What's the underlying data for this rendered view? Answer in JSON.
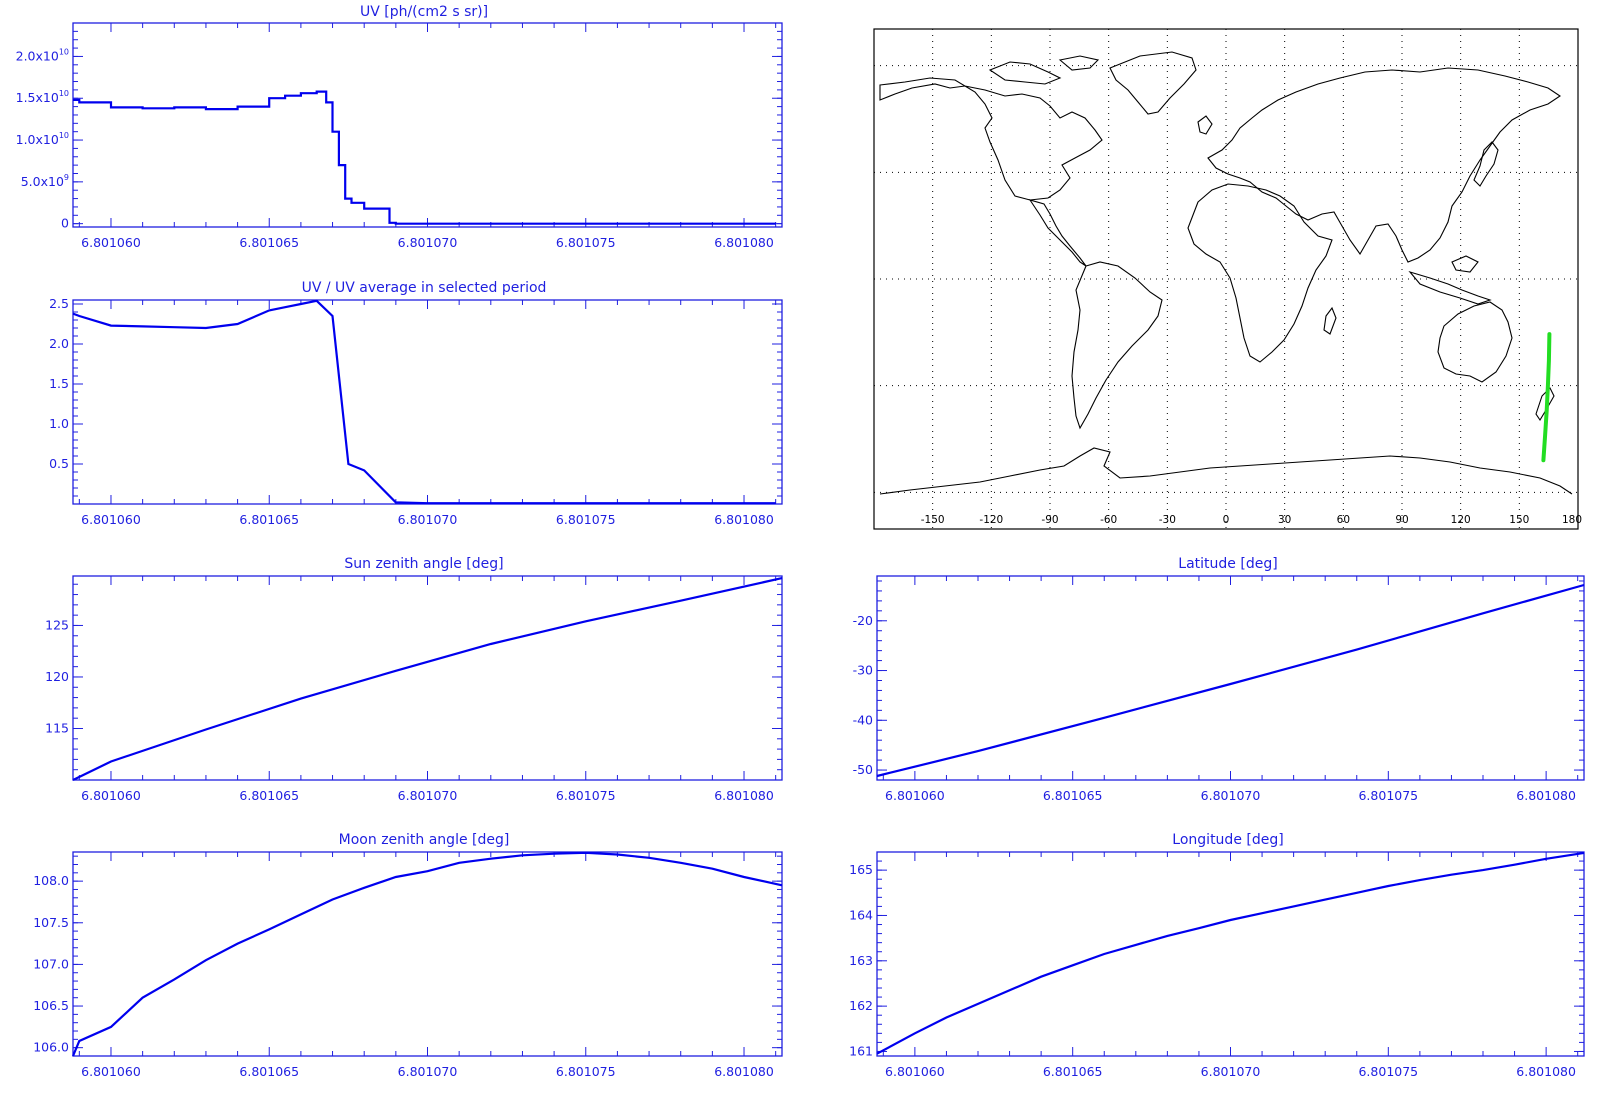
{
  "colors": {
    "axis": "#1f1fe0",
    "line": "#0000ee",
    "map_line": "#000000",
    "track": "#22dd22",
    "grid": "#000000"
  },
  "map": {
    "lon_ticks": [
      "-150",
      "-120",
      "-90",
      "-60",
      "-30",
      "0",
      "30",
      "60",
      "90",
      "120",
      "150",
      "180"
    ],
    "lat_grid": [
      -60,
      -30,
      0,
      30,
      60
    ],
    "lon_grid": [
      -150,
      -120,
      -90,
      -60,
      -30,
      0,
      30,
      60,
      90,
      120,
      150
    ],
    "track": [
      [
        162.3,
        -51.0
      ],
      [
        163.2,
        -44.0
      ],
      [
        164.0,
        -37.0
      ],
      [
        164.6,
        -30.0
      ],
      [
        165.1,
        -23.0
      ],
      [
        165.4,
        -15.5
      ]
    ]
  },
  "chart_data": [
    {
      "type": "line",
      "title": "UV [ph/(cm2 s sr)]",
      "ylim": [
        -400000000,
        24000000000
      ],
      "xlim": [
        6.8010588,
        6.8010812
      ],
      "x_ticks": [
        "6.801060",
        "6.801065",
        "6.801070",
        "6.801075",
        "6.801080"
      ],
      "y_ticks": [
        {
          "value": 0,
          "label": "0"
        },
        {
          "value": 5000000000,
          "label": "5.0x10",
          "exp": "9"
        },
        {
          "value": 10000000000,
          "label": "1.0x10",
          "exp": "10"
        },
        {
          "value": 15000000000,
          "label": "1.5x10",
          "exp": "10"
        },
        {
          "value": 20000000000,
          "label": "2.0x10",
          "exp": "10"
        }
      ],
      "step": true,
      "x": [
        6.8010588,
        6.801059,
        6.80106,
        6.801061,
        6.801062,
        6.801063,
        6.801064,
        6.801065,
        6.8010655,
        6.801066,
        6.8010665,
        6.8010668,
        6.801067,
        6.8010672,
        6.8010674,
        6.8010676,
        6.801068,
        6.8010688,
        6.801069,
        6.80107,
        6.801075,
        6.801081
      ],
      "y": [
        14800000000,
        14500000000,
        13900000000,
        13800000000,
        13900000000,
        13700000000,
        14000000000,
        15000000000,
        15300000000,
        15600000000,
        15800000000,
        14500000000,
        11000000000,
        7000000000,
        3000000000,
        2500000000,
        1800000000,
        100000000,
        0,
        0,
        0,
        0
      ]
    },
    {
      "type": "line",
      "title": "UV / UV average in selected period",
      "ylim": [
        0.0,
        2.55
      ],
      "xlim": [
        6.8010588,
        6.8010812
      ],
      "x_ticks": [
        "6.801060",
        "6.801065",
        "6.801070",
        "6.801075",
        "6.801080"
      ],
      "y_ticks": [
        {
          "value": 0.5,
          "label": "0.5"
        },
        {
          "value": 1.0,
          "label": "1.0"
        },
        {
          "value": 1.5,
          "label": "1.5"
        },
        {
          "value": 2.0,
          "label": "2.0"
        },
        {
          "value": 2.5,
          "label": "2.5"
        }
      ],
      "x": [
        6.8010588,
        6.801059,
        6.80106,
        6.801061,
        6.801062,
        6.801063,
        6.801064,
        6.801065,
        6.8010655,
        6.801066,
        6.8010665,
        6.801067,
        6.8010675,
        6.801068,
        6.801069,
        6.80107,
        6.801075,
        6.801081
      ],
      "y": [
        2.38,
        2.35,
        2.23,
        2.22,
        2.21,
        2.2,
        2.25,
        2.42,
        2.46,
        2.5,
        2.54,
        2.35,
        0.5,
        0.42,
        0.02,
        0.01,
        0.01,
        0.01
      ]
    },
    {
      "type": "line",
      "title": "Sun zenith angle [deg]",
      "ylim": [
        110,
        129.8
      ],
      "xlim": [
        6.8010588,
        6.8010812
      ],
      "x_ticks": [
        "6.801060",
        "6.801065",
        "6.801070",
        "6.801075",
        "6.801080"
      ],
      "y_ticks": [
        {
          "value": 115,
          "label": "115"
        },
        {
          "value": 120,
          "label": "120"
        },
        {
          "value": 125,
          "label": "125"
        }
      ],
      "x": [
        6.8010588,
        6.80106,
        6.801063,
        6.801066,
        6.801069,
        6.801072,
        6.801075,
        6.801078,
        6.8010812
      ],
      "y": [
        110.0,
        111.8,
        114.9,
        117.9,
        120.6,
        123.2,
        125.4,
        127.4,
        129.6
      ]
    },
    {
      "type": "line",
      "title": "Latitude [deg]",
      "ylim": [
        -52,
        -11
      ],
      "xlim": [
        6.8010588,
        6.8010812
      ],
      "x_ticks": [
        "6.801060",
        "6.801065",
        "6.801070",
        "6.801075",
        "6.801080"
      ],
      "y_ticks": [
        {
          "value": -50,
          "label": "-50"
        },
        {
          "value": -40,
          "label": "-40"
        },
        {
          "value": -30,
          "label": "-30"
        },
        {
          "value": -20,
          "label": "-20"
        }
      ],
      "x": [
        6.8010588,
        6.801062,
        6.801066,
        6.80107,
        6.801074,
        6.801078,
        6.8010812
      ],
      "y": [
        -51.2,
        -46.2,
        -39.5,
        -32.7,
        -25.8,
        -18.5,
        -12.8
      ]
    },
    {
      "type": "line",
      "title": "Moon zenith angle [deg]",
      "ylim": [
        105.9,
        108.35
      ],
      "xlim": [
        6.8010588,
        6.8010812
      ],
      "x_ticks": [
        "6.801060",
        "6.801065",
        "6.801070",
        "6.801075",
        "6.801080"
      ],
      "y_ticks": [
        {
          "value": 106.0,
          "label": "106.0"
        },
        {
          "value": 106.5,
          "label": "106.5"
        },
        {
          "value": 107.0,
          "label": "107.0"
        },
        {
          "value": 107.5,
          "label": "107.5"
        },
        {
          "value": 108.0,
          "label": "108.0"
        }
      ],
      "x": [
        6.8010588,
        6.801059,
        6.80106,
        6.801061,
        6.801062,
        6.801063,
        6.801064,
        6.801065,
        6.801066,
        6.801067,
        6.801068,
        6.801069,
        6.80107,
        6.801071,
        6.801072,
        6.801073,
        6.801074,
        6.801075,
        6.801076,
        6.801077,
        6.801078,
        6.801079,
        6.80108,
        6.8010812
      ],
      "y": [
        105.9,
        106.08,
        106.25,
        106.6,
        106.82,
        107.05,
        107.25,
        107.42,
        107.6,
        107.78,
        107.92,
        108.05,
        108.12,
        108.22,
        108.27,
        108.31,
        108.33,
        108.34,
        108.32,
        108.28,
        108.22,
        108.15,
        108.05,
        107.95
      ]
    },
    {
      "type": "line",
      "title": "Longitude [deg]",
      "ylim": [
        160.9,
        165.4
      ],
      "xlim": [
        6.8010588,
        6.8010812
      ],
      "x_ticks": [
        "6.801060",
        "6.801065",
        "6.801070",
        "6.801075",
        "6.801080"
      ],
      "y_ticks": [
        {
          "value": 161,
          "label": "161"
        },
        {
          "value": 162,
          "label": "162"
        },
        {
          "value": 163,
          "label": "163"
        },
        {
          "value": 164,
          "label": "164"
        },
        {
          "value": 165,
          "label": "165"
        }
      ],
      "x": [
        6.8010588,
        6.80106,
        6.801061,
        6.801062,
        6.801063,
        6.801064,
        6.801065,
        6.801066,
        6.801067,
        6.801068,
        6.801069,
        6.80107,
        6.801071,
        6.801072,
        6.801073,
        6.801074,
        6.801075,
        6.801076,
        6.801077,
        6.801078,
        6.801079,
        6.80108,
        6.8010812
      ],
      "y": [
        160.95,
        161.4,
        161.75,
        162.05,
        162.35,
        162.65,
        162.9,
        163.15,
        163.35,
        163.55,
        163.72,
        163.9,
        164.05,
        164.2,
        164.35,
        164.5,
        164.65,
        164.78,
        164.9,
        165.0,
        165.12,
        165.25,
        165.38
      ]
    }
  ]
}
